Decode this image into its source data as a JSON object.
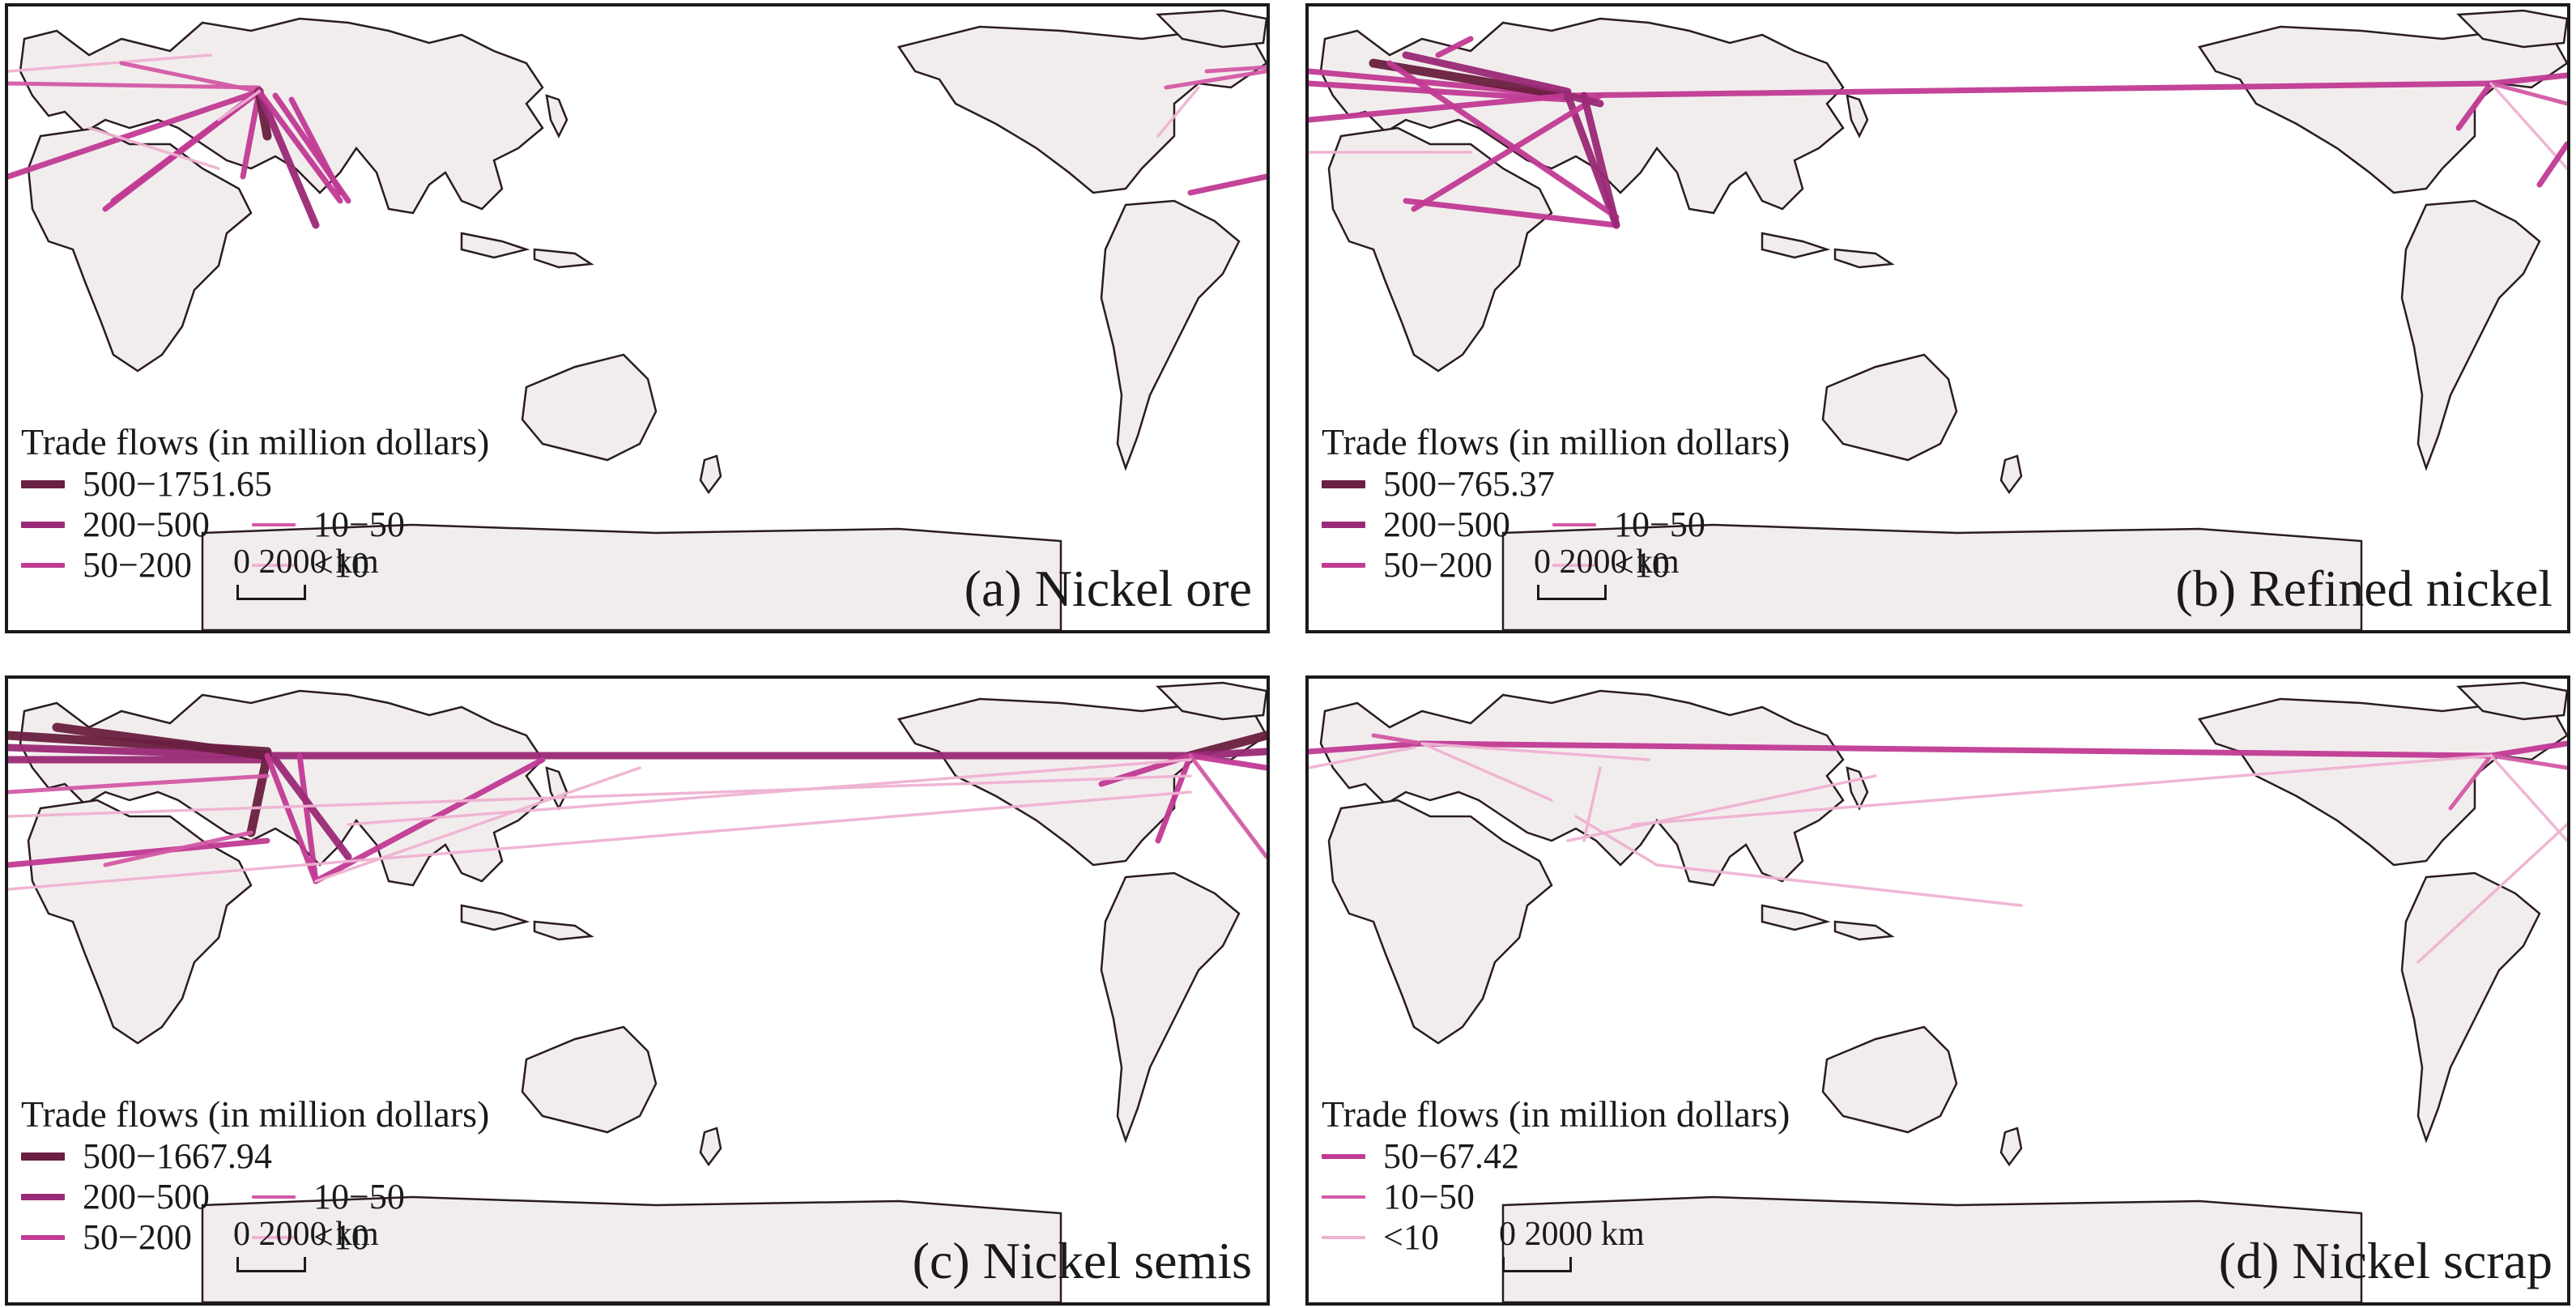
{
  "colors": {
    "land": "#f2eded",
    "border": "#2a1c20",
    "ocean": "#ffffff",
    "class_1": "#6b1f40",
    "class_2": "#9a2a77",
    "class_3": "#c13a94",
    "class_4": "#d35aa6",
    "class_5": "#efb3d2"
  },
  "legend_title": "Trade flows (in million dollars)",
  "scale_label": "0 2000 km",
  "panels": [
    {
      "id": "a",
      "caption": "(a) Nickel ore",
      "legend": [
        {
          "label": "500−1751.65",
          "cls": "class_1"
        },
        {
          "label": "200−500",
          "cls": "class_2"
        },
        {
          "label": "50−200",
          "cls": "class_3"
        },
        {
          "label": "10−50",
          "cls": "class_4"
        },
        {
          "label": "<10",
          "cls": "class_5"
        }
      ]
    },
    {
      "id": "b",
      "caption": "(b) Refined nickel",
      "legend": [
        {
          "label": "500−765.37",
          "cls": "class_1"
        },
        {
          "label": "200−500",
          "cls": "class_2"
        },
        {
          "label": "50−200",
          "cls": "class_3"
        },
        {
          "label": "10−50",
          "cls": "class_4"
        },
        {
          "label": "<10",
          "cls": "class_5"
        }
      ]
    },
    {
      "id": "c",
      "caption": "(c) Nickel semis",
      "legend": [
        {
          "label": "500−1667.94",
          "cls": "class_1"
        },
        {
          "label": "200−500",
          "cls": "class_2"
        },
        {
          "label": "50−200",
          "cls": "class_3"
        },
        {
          "label": "10−50",
          "cls": "class_4"
        },
        {
          "label": "<10",
          "cls": "class_5"
        }
      ]
    },
    {
      "id": "d",
      "caption": "(d) Nickel scrap",
      "legend": [
        {
          "label": "50−67.42",
          "cls": "class_3"
        },
        {
          "label": "10−50",
          "cls": "class_4"
        },
        {
          "label": "<10",
          "cls": "class_5"
        }
      ]
    }
  ]
}
